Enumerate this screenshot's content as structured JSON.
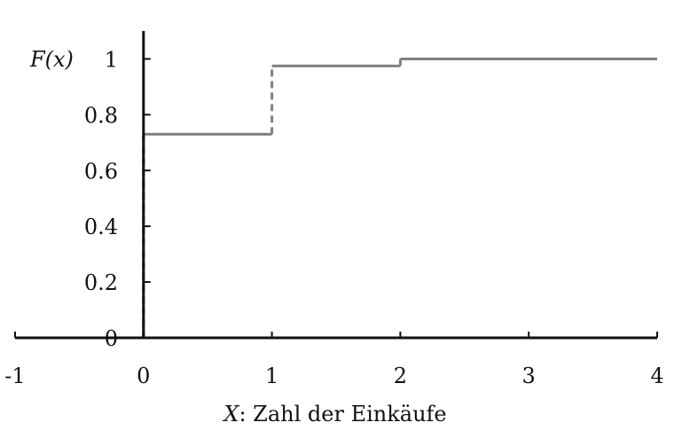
{
  "chart_data": {
    "type": "line",
    "subtype": "step-cdf",
    "title": "",
    "ylabel": "F(x)",
    "xlabel_var": "X",
    "xlabel_text": ": Zahl der Einkäufe",
    "xlim": [
      -1,
      4
    ],
    "ylim": [
      0,
      1.1
    ],
    "x_ticks": [
      "-1",
      "0",
      "1",
      "2",
      "3",
      "4"
    ],
    "x_tick_values": [
      -1,
      0,
      1,
      2,
      3,
      4
    ],
    "y_ticks": [
      "0",
      "0.2",
      "0.4",
      "0.6",
      "0.8",
      "1"
    ],
    "y_tick_values": [
      0,
      0.2,
      0.4,
      0.6,
      0.8,
      1
    ],
    "grid": false,
    "steps": [
      {
        "x_from": -1,
        "x_to": 0,
        "y": 0
      },
      {
        "x_from": 0,
        "x_to": 1,
        "y": 0.73
      },
      {
        "x_from": 1,
        "x_to": 2,
        "y": 0.975
      },
      {
        "x_from": 2,
        "x_to": 4,
        "y": 1.0
      }
    ],
    "jumps": [
      {
        "x": 0,
        "y_from": 0,
        "y_to": 0.73
      },
      {
        "x": 1,
        "y_from": 0.73,
        "y_to": 0.975
      },
      {
        "x": 2,
        "y_from": 0.975,
        "y_to": 1.0
      }
    ],
    "colors": {
      "step": "#808080",
      "axis": "#111111",
      "jump": "#808080"
    }
  }
}
